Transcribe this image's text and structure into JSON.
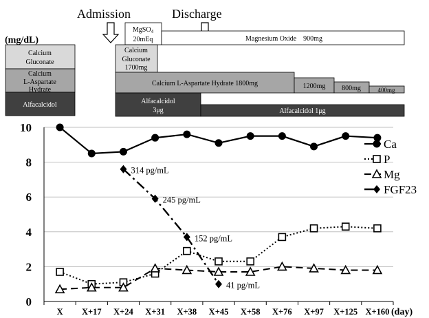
{
  "events": {
    "admission": "Admission",
    "discharge": "Discharge"
  },
  "regimen": {
    "before_admission": {
      "calcium_gluconate": [
        "Calcium",
        "Gluconate"
      ],
      "calcium_aspartate": [
        "Calcium",
        "L-Aspartate",
        "Hydrate"
      ],
      "alfacalcidol": "Alfacalcidol"
    },
    "mgso4": [
      "MgSO4",
      "20mEq"
    ],
    "magnesium_oxide": "Magnesium Oxide　900mg",
    "calcium_gluconate": [
      "Calcium",
      "Gluconate",
      "1700mg"
    ],
    "calcium_aspartate_doses": [
      "Calcium L-Aspartate Hydrate 1800mg",
      "1200mg",
      "800mg",
      "400mg"
    ],
    "alfacalcidol_doses": [
      [
        "Alfacalcidol",
        "3μg"
      ],
      "Alfacalcidol 1μg"
    ]
  },
  "colors": {
    "calcium_gluconate": "#d9d9d9",
    "calcium_aspartate": "#a6a6a6",
    "alfacalcidol": "#404040",
    "magnesium_oxide": "#ffffff",
    "gridline": "#bfbfbf"
  },
  "chart_data": {
    "type": "line",
    "ylabel": "(mg/dL)",
    "xlabel": "(day)",
    "ylim": [
      0,
      10
    ],
    "yticks": [
      0,
      2,
      4,
      6,
      8,
      10
    ],
    "grid": true,
    "legend_position": "right",
    "categories": [
      "X",
      "X+17",
      "X+24",
      "X+31",
      "X+38",
      "X+45",
      "X+58",
      "X+76",
      "X+97",
      "X+125",
      "X+160"
    ],
    "series": [
      {
        "name": "Ca",
        "marker": "filled-circle",
        "line": "solid",
        "values": [
          10.0,
          8.5,
          8.6,
          9.4,
          9.6,
          9.1,
          9.5,
          9.5,
          8.9,
          9.5,
          9.4
        ]
      },
      {
        "name": "P",
        "marker": "open-square",
        "line": "dotted",
        "values": [
          1.7,
          1.0,
          1.1,
          1.6,
          2.9,
          2.3,
          2.3,
          3.7,
          4.2,
          4.3,
          4.2
        ]
      },
      {
        "name": "Mg",
        "marker": "open-triangle",
        "line": "dashed",
        "values": [
          0.7,
          0.8,
          0.8,
          1.9,
          1.8,
          1.7,
          1.7,
          2.0,
          1.9,
          1.8,
          1.8
        ]
      },
      {
        "name": "FGF23",
        "marker": "filled-diamond",
        "line": "dash-dot",
        "values": [
          null,
          null,
          7.6,
          5.9,
          3.7,
          1.0,
          null,
          null,
          null,
          null,
          null
        ],
        "labels": [
          null,
          null,
          "314 pg/mL",
          "245 pg/mL",
          "152 pg/mL",
          "41 pg/mL",
          null,
          null,
          null,
          null,
          null
        ]
      }
    ]
  }
}
